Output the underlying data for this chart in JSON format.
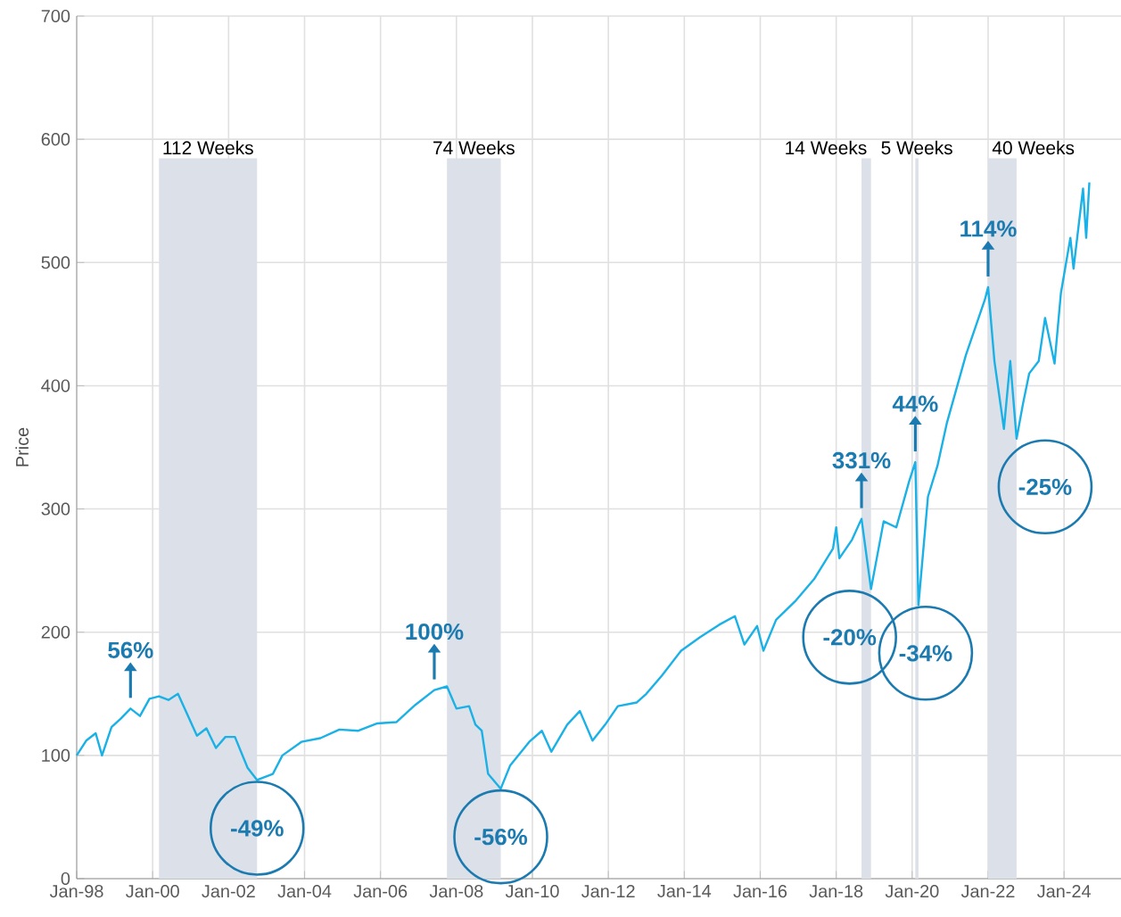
{
  "chart_data": {
    "type": "line",
    "ylabel": "Price",
    "color": "#19b1e6",
    "grid": true,
    "xlim": [
      "1998-01",
      "2025-07"
    ],
    "ylim": [
      0,
      700
    ],
    "yticks": [
      0,
      100,
      200,
      300,
      400,
      500,
      600,
      700
    ],
    "xticks": [
      {
        "value": "1998-01",
        "label": "Jan-98"
      },
      {
        "value": "2000-01",
        "label": "Jan-00"
      },
      {
        "value": "2002-01",
        "label": "Jan-02"
      },
      {
        "value": "2004-01",
        "label": "Jan-04"
      },
      {
        "value": "2006-01",
        "label": "Jan-06"
      },
      {
        "value": "2008-01",
        "label": "Jan-08"
      },
      {
        "value": "2010-01",
        "label": "Jan-10"
      },
      {
        "value": "2012-01",
        "label": "Jan-12"
      },
      {
        "value": "2014-01",
        "label": "Jan-14"
      },
      {
        "value": "2016-01",
        "label": "Jan-16"
      },
      {
        "value": "2018-01",
        "label": "Jan-18"
      },
      {
        "value": "2020-01",
        "label": "Jan-20"
      },
      {
        "value": "2022-01",
        "label": "Jan-22"
      },
      {
        "value": "2024-01",
        "label": "Jan-24"
      }
    ],
    "x": [
      "1998-01",
      "1998-04",
      "1998-07",
      "1998-09",
      "1998-12",
      "1999-03",
      "1999-06",
      "1999-09",
      "1999-12",
      "2000-03",
      "2000-06",
      "2000-09",
      "2000-12",
      "2001-03",
      "2001-06",
      "2001-09",
      "2001-12",
      "2002-03",
      "2002-07",
      "2002-10",
      "2003-03",
      "2003-06",
      "2003-12",
      "2004-06",
      "2004-12",
      "2005-06",
      "2005-12",
      "2006-06",
      "2006-12",
      "2007-06",
      "2007-10",
      "2008-01",
      "2008-05",
      "2008-07",
      "2008-09",
      "2008-11",
      "2009-03",
      "2009-06",
      "2009-12",
      "2010-04",
      "2010-07",
      "2010-12",
      "2011-04",
      "2011-08",
      "2011-12",
      "2012-04",
      "2012-10",
      "2013-01",
      "2013-06",
      "2013-12",
      "2014-06",
      "2014-12",
      "2015-05",
      "2015-08",
      "2015-12",
      "2016-02",
      "2016-06",
      "2016-12",
      "2017-06",
      "2017-12",
      "2018-01",
      "2018-02",
      "2018-06",
      "2018-09",
      "2018-12",
      "2019-04",
      "2019-08",
      "2019-12",
      "2020-02",
      "2020-03",
      "2020-06",
      "2020-09",
      "2020-12",
      "2021-06",
      "2021-12",
      "2022-01",
      "2022-03",
      "2022-06",
      "2022-08",
      "2022-10",
      "2022-12",
      "2023-02",
      "2023-05",
      "2023-07",
      "2023-10",
      "2023-12",
      "2024-03",
      "2024-04",
      "2024-07",
      "2024-08",
      "2024-09"
    ],
    "values": [
      100,
      112,
      118,
      100,
      123,
      130,
      138,
      132,
      146,
      148,
      145,
      150,
      133,
      116,
      122,
      106,
      115,
      115,
      90,
      80,
      85,
      100,
      111,
      114,
      121,
      120,
      126,
      127,
      141,
      153,
      156,
      138,
      140,
      125,
      120,
      85,
      73,
      92,
      111,
      120,
      103,
      125,
      136,
      112,
      125,
      140,
      143,
      150,
      165,
      185,
      196,
      206,
      213,
      190,
      205,
      185,
      210,
      225,
      243,
      268,
      285,
      260,
      275,
      292,
      235,
      290,
      285,
      322,
      338,
      222,
      310,
      335,
      370,
      425,
      470,
      480,
      420,
      365,
      420,
      357,
      385,
      410,
      420,
      455,
      418,
      475,
      520,
      495,
      560,
      520,
      565
    ],
    "bands": [
      {
        "axis": "x",
        "from": "2000-03",
        "to": "2002-10",
        "label": "112 Weeks",
        "color": "#dce0e8"
      },
      {
        "axis": "x",
        "from": "2007-10",
        "to": "2009-03",
        "label": "74 Weeks",
        "color": "#dce0e8"
      },
      {
        "axis": "x",
        "from": "2018-09",
        "to": "2018-12",
        "label": "14 Weeks",
        "color": "#dce0e8"
      },
      {
        "axis": "x",
        "from": "2020-02",
        "to": "2020-03",
        "label": "5 Weeks",
        "color": "#dce0e8"
      },
      {
        "axis": "x",
        "from": "2022-01",
        "to": "2022-10",
        "label": "40 Weeks",
        "color": "#dce0e8"
      }
    ],
    "annotations": [
      {
        "text": "56%",
        "x": "1999-06",
        "y": 138
      },
      {
        "text": "100%",
        "x": "2007-06",
        "y": 153
      },
      {
        "text": "331%",
        "x": "2018-09",
        "y": 292
      },
      {
        "text": "44%",
        "x": "2020-02",
        "y": 338
      },
      {
        "text": "114%",
        "x": "2022-01",
        "y": 480
      },
      {
        "text": "-49%",
        "x": "2002-10",
        "y": 80
      },
      {
        "text": "-56%",
        "x": "2009-03",
        "y": 73
      },
      {
        "text": "-20%",
        "x": "2018-12",
        "y": 235
      },
      {
        "text": "-34%",
        "x": "2020-03",
        "y": 222
      },
      {
        "text": "-25%",
        "x": "2022-10",
        "y": 357
      }
    ]
  }
}
